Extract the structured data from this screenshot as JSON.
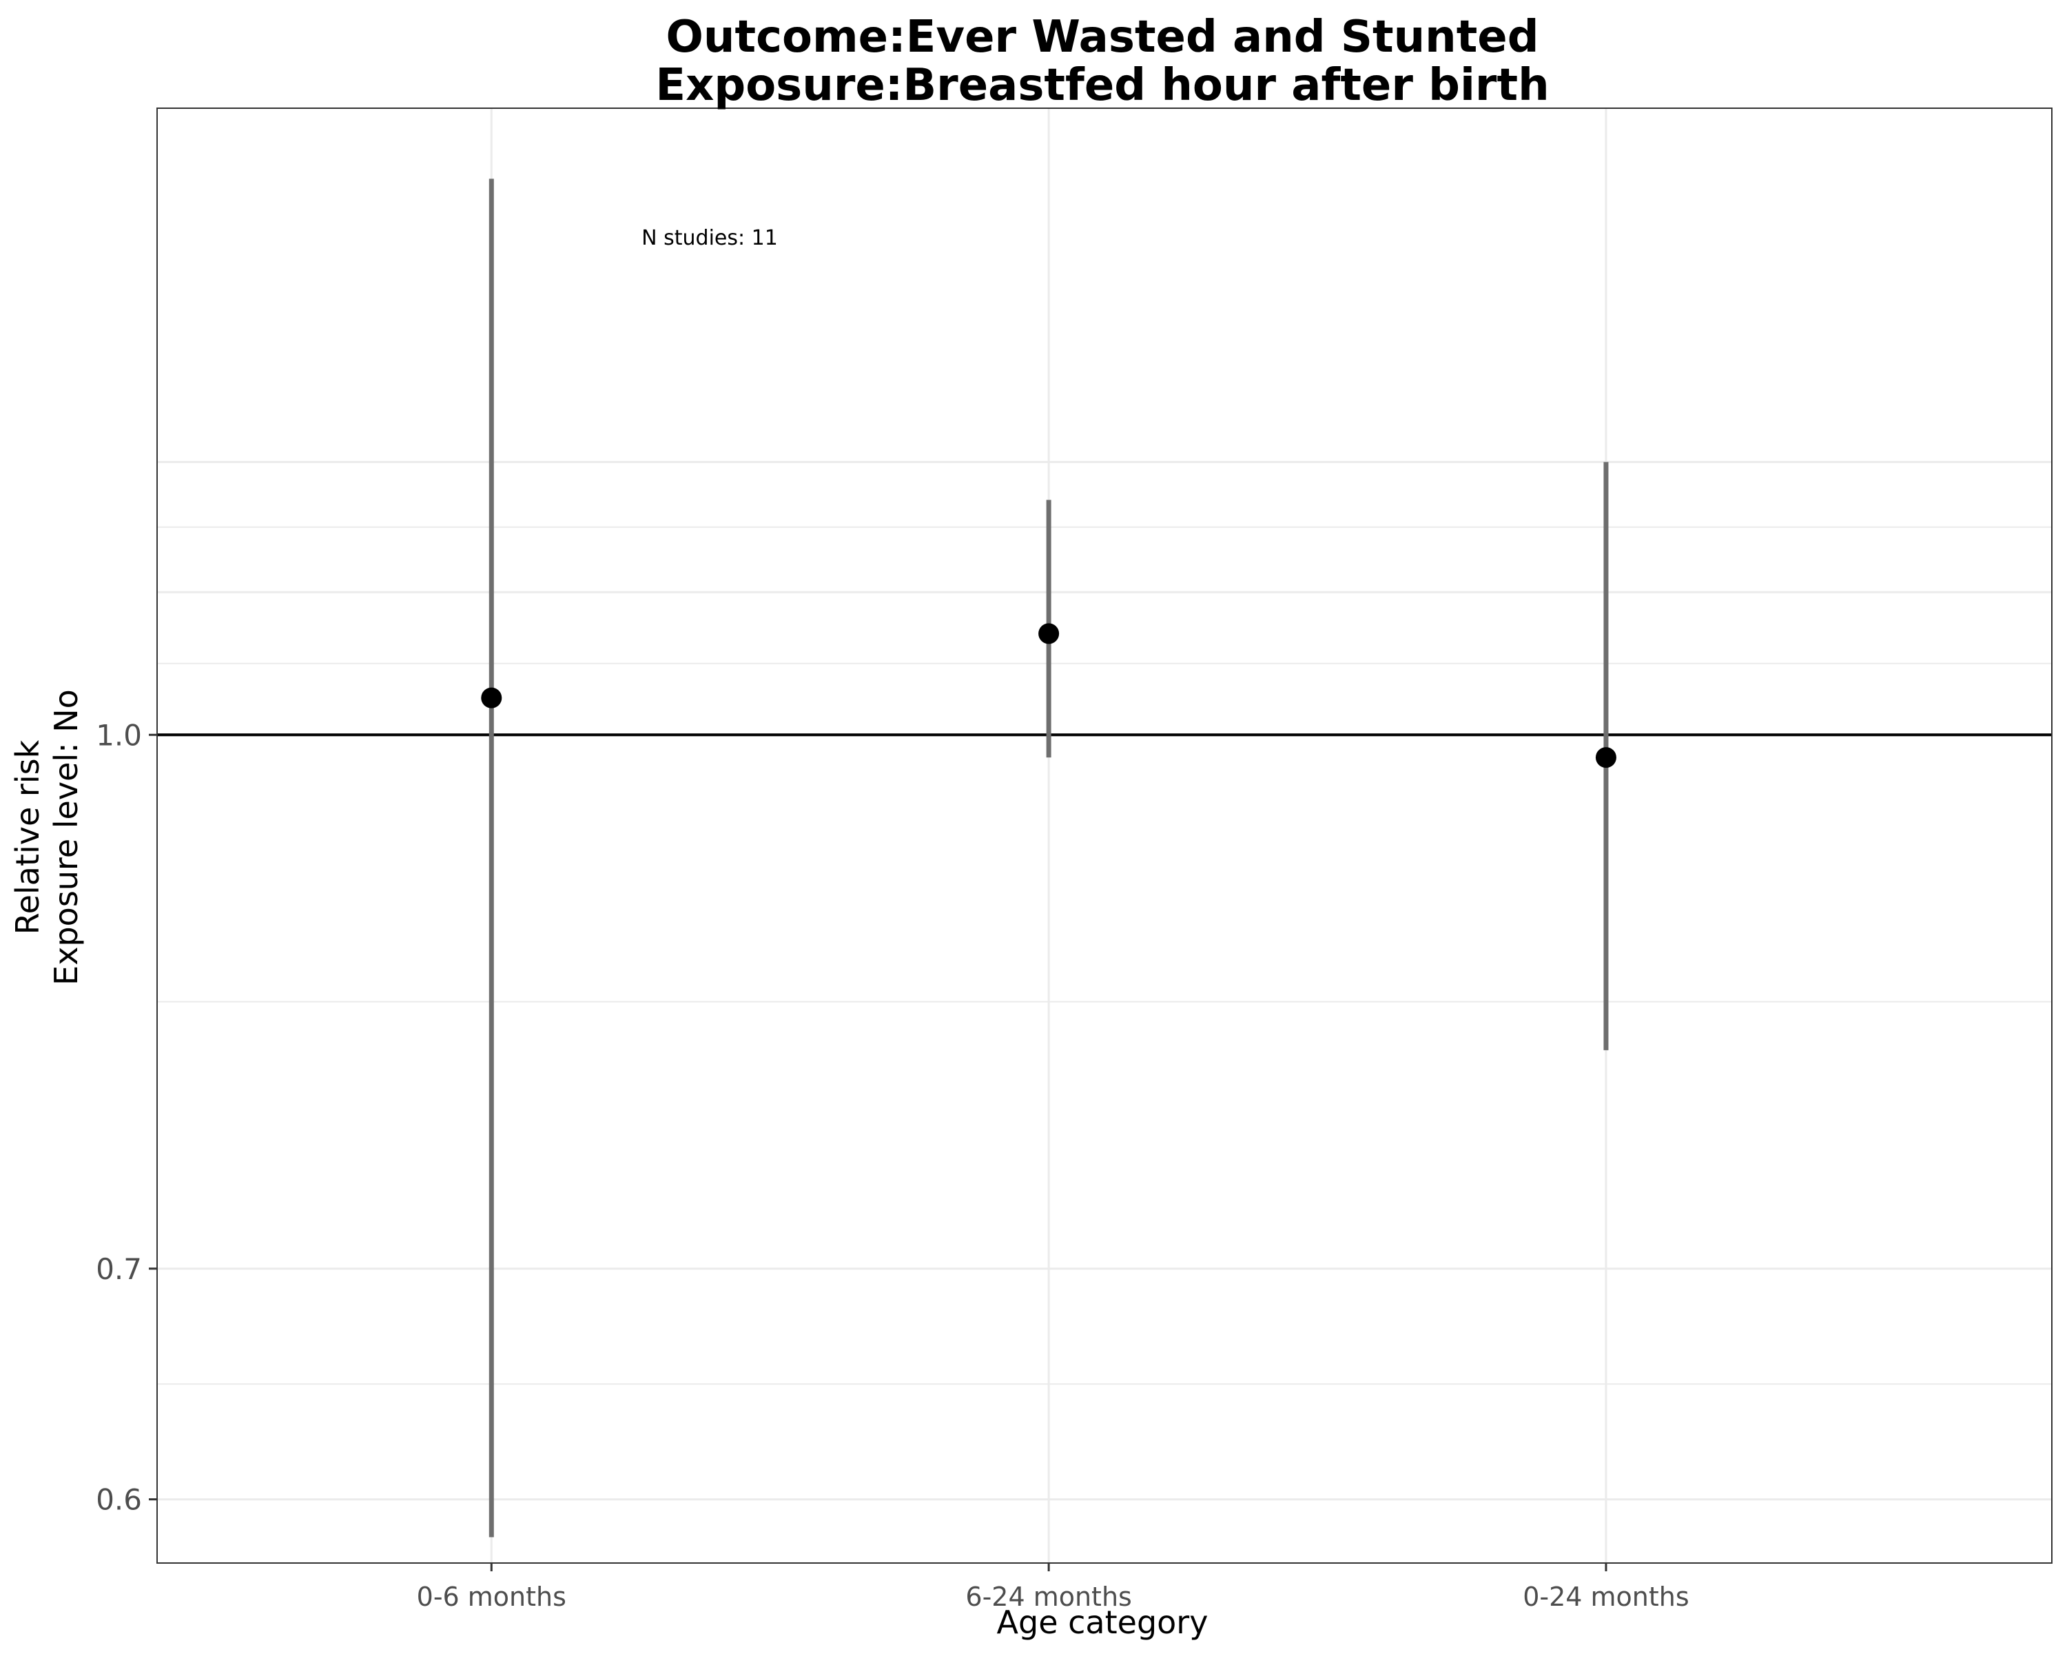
{
  "chart_data": {
    "type": "scatter",
    "title": [
      "Outcome:Ever Wasted and Stunted",
      "Exposure:Breastfed hour after birth"
    ],
    "xlabel": "Age category",
    "ylabel": [
      "Relative risk",
      "Exposure level: No"
    ],
    "y_scale": "log",
    "ylim": [
      0.575,
      1.52
    ],
    "y_ticks": [
      0.6,
      0.7,
      1.0
    ],
    "y_tick_labels": [
      "0.6",
      "0.7",
      "1.0"
    ],
    "reference_line": 1.0,
    "grid": true,
    "categories": [
      "0-6 months",
      "6-24 months",
      "0-24 months"
    ],
    "series": [
      {
        "estimates": [
          1.025,
          1.07,
          0.985
        ],
        "ci_lower": [
          0.585,
          0.985,
          0.81
        ],
        "ci_upper": [
          1.45,
          1.17,
          1.2
        ]
      }
    ],
    "annotations": [
      {
        "text": "N studies: 11",
        "category": "0-6 months"
      }
    ]
  },
  "colors": {
    "background": "#ffffff",
    "grid": "#ebebeb",
    "ci_line": "#6e6e6e",
    "point": "#000000",
    "reference_line": "#000000",
    "panel_border": "#333333"
  }
}
